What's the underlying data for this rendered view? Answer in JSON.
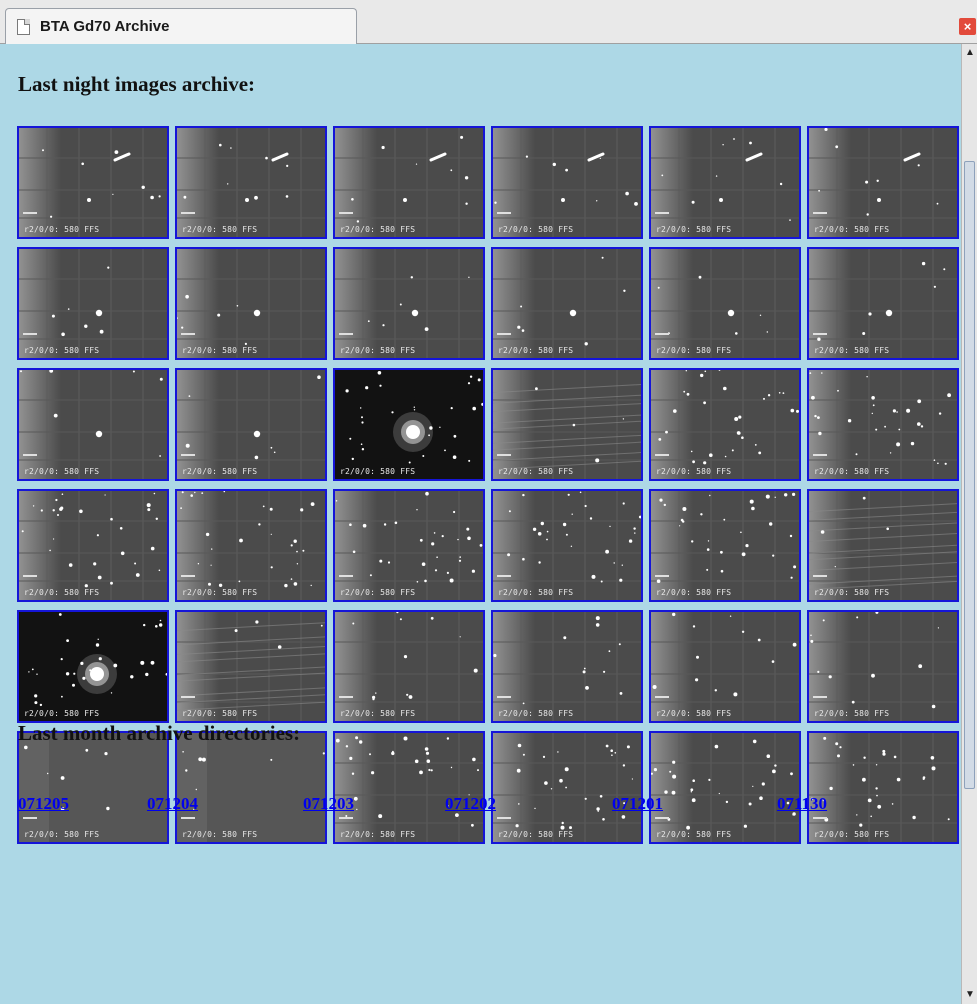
{
  "tab": {
    "title": "BTA Gd70 Archive",
    "icon": "page-icon",
    "close_icon": "close-icon"
  },
  "page": {
    "heading_images": "Last night images archive:",
    "heading_dirs": "Last month archive directories:",
    "background": "#add8e6",
    "link_color": "#0000ee",
    "thumb_border": "#1515d8"
  },
  "thumbnails": [
    {
      "caption": "r2/0/0: 580 FFS",
      "kind": "trail"
    },
    {
      "caption": "r2/0/0: 580 FFS",
      "kind": "trail"
    },
    {
      "caption": "r2/0/0: 580 FFS",
      "kind": "trail"
    },
    {
      "caption": "r2/0/0: 580 FFS",
      "kind": "trail"
    },
    {
      "caption": "r2/0/0: 580 FFS",
      "kind": "trail"
    },
    {
      "caption": "r2/0/0: 580 FFS",
      "kind": "trail"
    },
    {
      "caption": "r2/0/0: 580 FFS",
      "kind": "star"
    },
    {
      "caption": "r2/0/0: 580 FFS",
      "kind": "star"
    },
    {
      "caption": "r2/0/0: 580 FFS",
      "kind": "star"
    },
    {
      "caption": "r2/0/0: 580 FFS",
      "kind": "star"
    },
    {
      "caption": "r2/0/0: 580 FFS",
      "kind": "star"
    },
    {
      "caption": "r2/0/0: 580 FFS",
      "kind": "star"
    },
    {
      "caption": "r2/0/0: 580 FFS",
      "kind": "star"
    },
    {
      "caption": "r2/0/0: 580 FFS",
      "kind": "star"
    },
    {
      "caption": "r2/0/0: 580 FFS",
      "kind": "galaxy"
    },
    {
      "caption": "r2/0/0: 580 FFS",
      "kind": "streaks"
    },
    {
      "caption": "r2/0/0: 580 FFS",
      "kind": "field"
    },
    {
      "caption": "r2/0/0: 580 FFS",
      "kind": "field"
    },
    {
      "caption": "r2/0/0: 580 FFS",
      "kind": "field"
    },
    {
      "caption": "r2/0/0: 580 FFS",
      "kind": "field"
    },
    {
      "caption": "r2/0/0: 580 FFS",
      "kind": "field"
    },
    {
      "caption": "r2/0/0: 580 FFS",
      "kind": "field"
    },
    {
      "caption": "r2/0/0: 580 FFS",
      "kind": "field"
    },
    {
      "caption": "r2/0/0: 580 FFS",
      "kind": "streaks"
    },
    {
      "caption": "r2/0/0: 580 FFS",
      "kind": "galaxy"
    },
    {
      "caption": "r2/0/0: 580 FFS",
      "kind": "streaks"
    },
    {
      "caption": "r2/0/0: 580 FFS",
      "kind": "sparse"
    },
    {
      "caption": "r2/0/0: 580 FFS",
      "kind": "sparse"
    },
    {
      "caption": "r2/0/0: 580 FFS",
      "kind": "sparse"
    },
    {
      "caption": "r2/0/0: 580 FFS",
      "kind": "sparse"
    },
    {
      "caption": "r2/0/0: 580 FFS",
      "kind": "flat"
    },
    {
      "caption": "r2/0/0: 580 FFS",
      "kind": "flat"
    },
    {
      "caption": "r2/0/0: 580 FFS",
      "kind": "field"
    },
    {
      "caption": "r2/0/0: 580 FFS",
      "kind": "field"
    },
    {
      "caption": "r2/0/0: 580 FFS",
      "kind": "field"
    },
    {
      "caption": "r2/0/0: 580 FFS",
      "kind": "field"
    }
  ],
  "directories": [
    "071205",
    "071204",
    "071203",
    "071202",
    "071201",
    "071130"
  ]
}
